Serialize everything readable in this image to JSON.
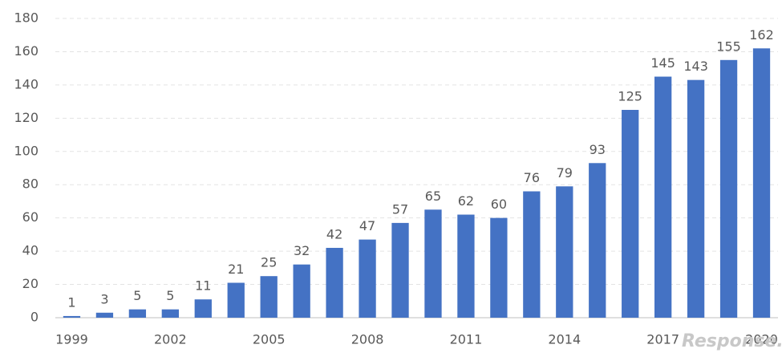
{
  "chart_data": {
    "type": "bar",
    "categories": [
      "1999",
      null,
      null,
      "2002",
      null,
      null,
      "2005",
      null,
      null,
      "2008",
      null,
      null,
      "2011",
      null,
      null,
      "2014",
      null,
      null,
      "2017",
      null,
      null,
      "2020"
    ],
    "values": [
      1,
      3,
      5,
      5,
      11,
      21,
      25,
      32,
      42,
      47,
      57,
      65,
      62,
      60,
      76,
      79,
      93,
      125,
      145,
      143,
      155,
      162
    ],
    "color": "#4472c4",
    "ylim": [
      0,
      180
    ],
    "yticks": [
      0,
      20,
      40,
      60,
      80,
      100,
      120,
      140,
      160,
      180
    ],
    "grid": true,
    "watermark": "Response."
  }
}
